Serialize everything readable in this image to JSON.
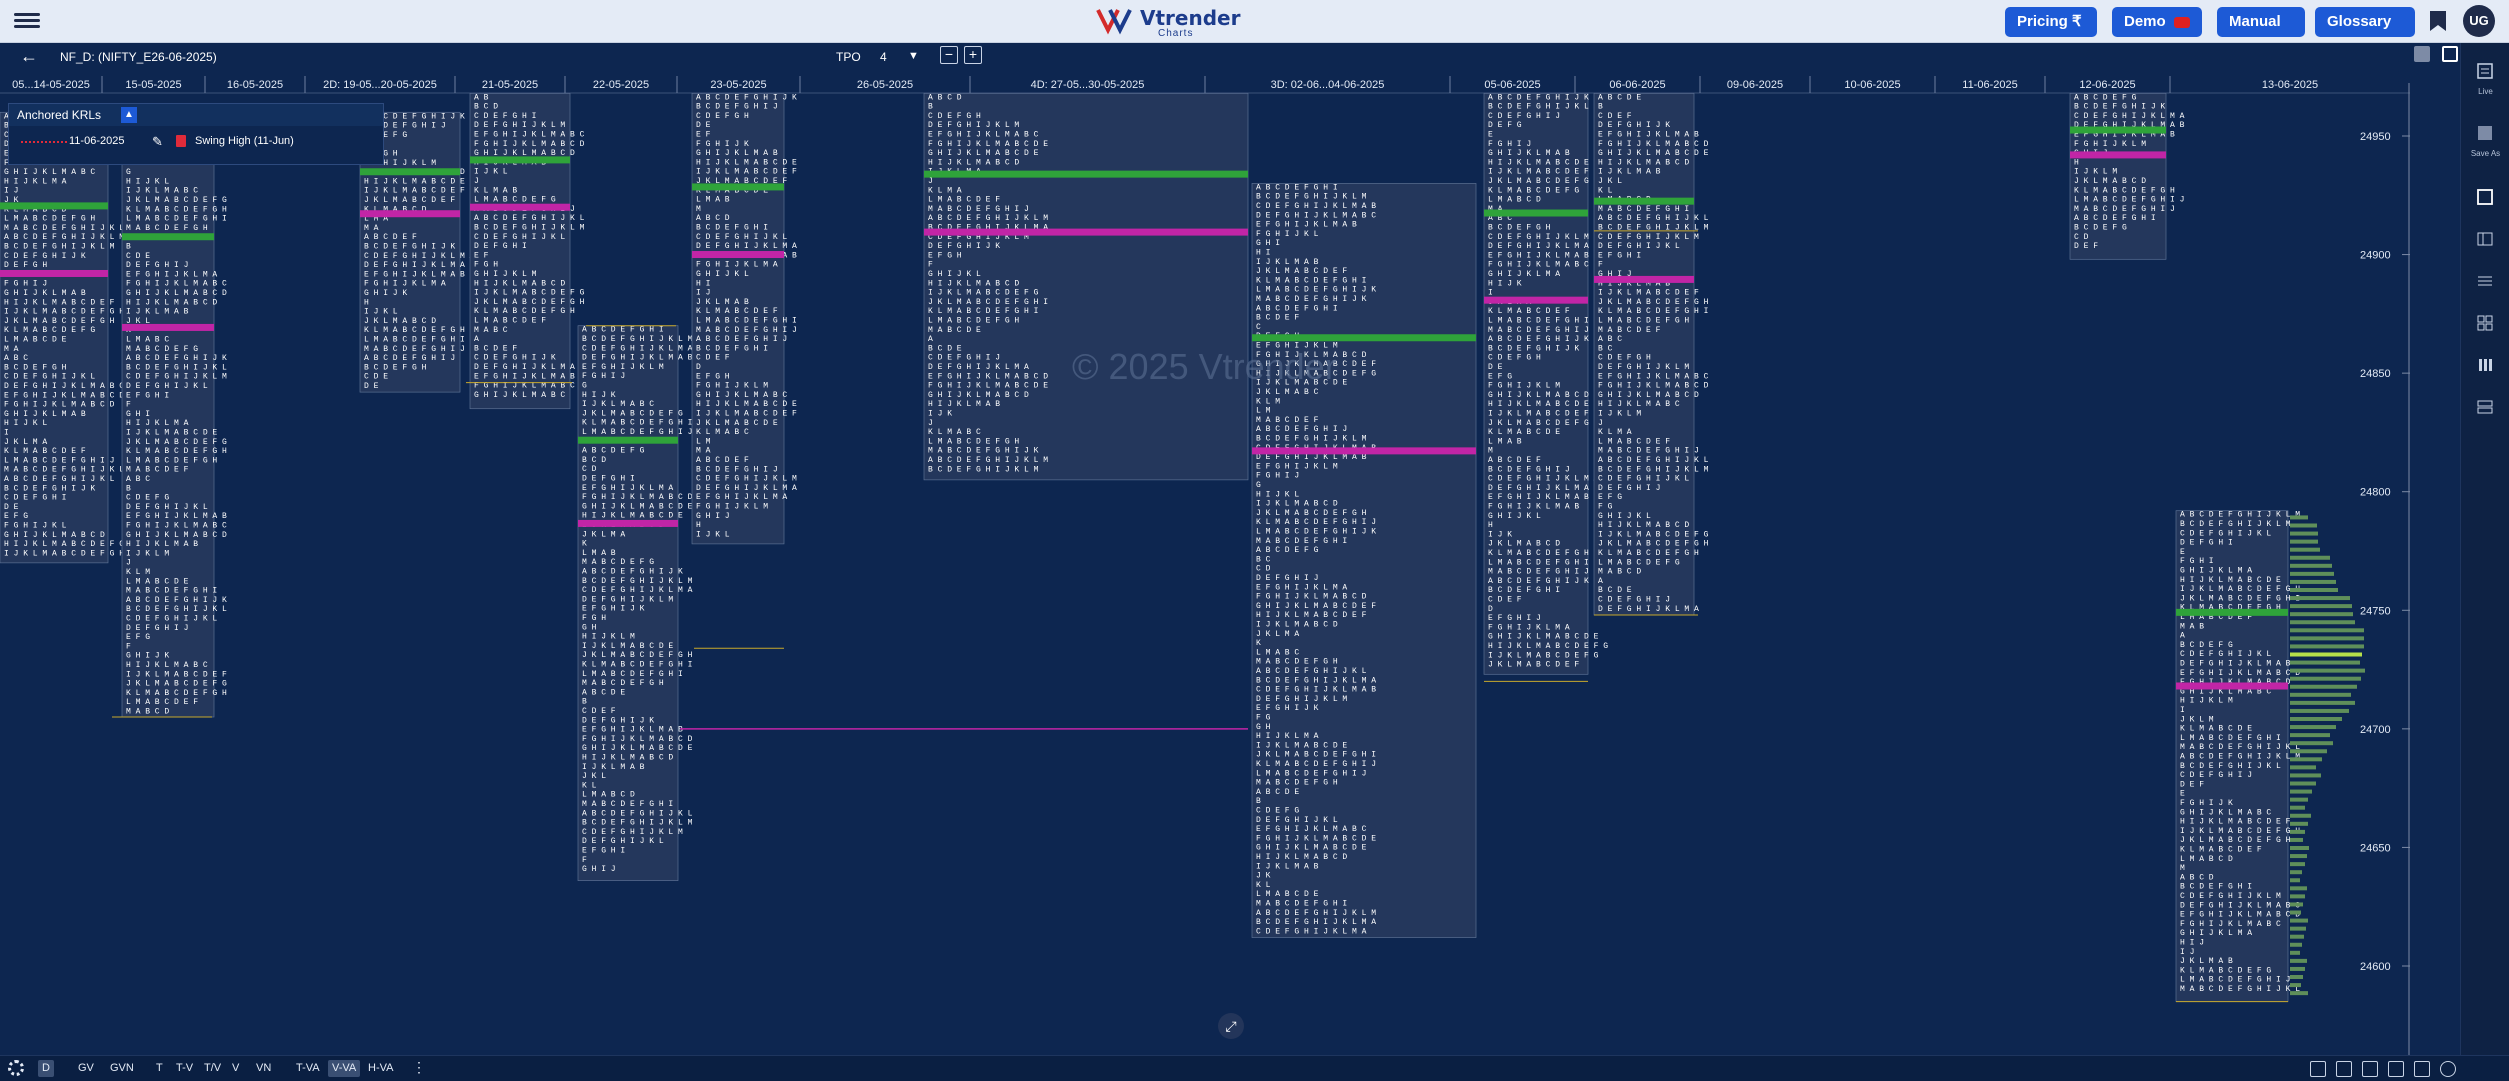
{
  "app": {
    "logo_text": "Vtrender",
    "logo_sub": "Charts",
    "user_initials": "UG",
    "brand_color": "#1d5ad6"
  },
  "nav": {
    "buttons": [
      {
        "label": "Pricing ₹"
      },
      {
        "label": "Demo"
      },
      {
        "label": "Manual"
      },
      {
        "label": "Glossary"
      }
    ]
  },
  "toolbar": {
    "symbol": "NF_D: (NIFTY_E26-06-2025)",
    "tpo_label": "TPO",
    "tpo_value": "4"
  },
  "krl_panel": {
    "title": "Anchored KRLs",
    "entry_date": "11-06-2025",
    "entry_name": "Swing High (11-Jun)"
  },
  "watermark": "© 2025 Vtrender",
  "chart_data": {
    "type": "market_profile",
    "instrument": "NF_D: (NIFTY_E26-06-2025)",
    "y_axis": {
      "ticks": [
        24950,
        24900,
        24850,
        24800,
        24750,
        24700,
        24650,
        24600
      ],
      "range": [
        24580,
        24970
      ]
    },
    "date_labels": [
      "05...14-05-2025",
      "15-05-2025",
      "16-05-2025",
      "2D: 19-05...20-05-2025",
      "21-05-2025",
      "22-05-2025",
      "23-05-2025",
      "26-05-2025",
      "4D: 27-05...30-05-2025",
      "3D: 02-06...04-06-2025",
      "05-06-2025",
      "06-06-2025",
      "09-06-2025",
      "10-06-2025",
      "11-06-2025",
      "12-06-2025",
      "13-06-2025"
    ],
    "profiles": [
      {
        "date": "05...14-05-2025",
        "high": 24960,
        "low": 24770
      },
      {
        "date": "15-05-2025",
        "high": 24960,
        "low": 24705
      },
      {
        "date": "2D: 19-05...20-05-2025",
        "high": 24960,
        "low": 24842
      },
      {
        "date": "21-05-2025",
        "high": 24968,
        "low": 24835
      },
      {
        "date": "22-05-2025",
        "high": 24870,
        "low": 24636
      },
      {
        "date": "23-05-2025",
        "high": 24968,
        "low": 24778
      },
      {
        "date": "4D: 27-05...30-05-2025",
        "high": 24968,
        "low": 24805
      },
      {
        "date": "3D: 02-06...04-06-2025",
        "high": 24930,
        "low": 24612
      },
      {
        "date": "05-06-2025",
        "high": 24968,
        "low": 24723
      },
      {
        "date": "06-06-2025",
        "high": 24968,
        "low": 24748
      },
      {
        "date": "12-06-2025",
        "high": 24968,
        "low": 24898
      },
      {
        "date": "13-06-2025",
        "high": 24792,
        "low": 24585
      }
    ]
  },
  "bottom_bar": {
    "items": [
      "D",
      "GV",
      "GVN",
      "T",
      "T-V",
      "T/V",
      "V",
      "VN",
      "T-VA",
      "V-VA",
      "H-VA"
    ],
    "active": [
      "D",
      "V-VA"
    ]
  },
  "right_panel": {
    "live_label": "Live",
    "save_label": "Save As"
  }
}
